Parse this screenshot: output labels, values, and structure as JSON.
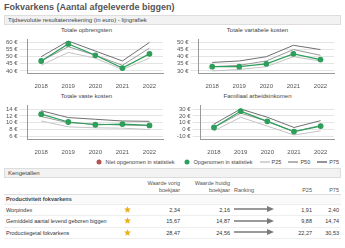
{
  "title": "Fokvarkens (Aantal afgeleverde biggen)",
  "section_title": "Tijdsevolutie resultatenrekening (in euro) - lijngrafiek",
  "chart_data": [
    {
      "type": "line",
      "title": "Totale opbrengsten",
      "categories": [
        "2018",
        "2019",
        "2020",
        "2021",
        "2022"
      ],
      "series": [
        {
          "name": "Niet opgenomen in statistiek",
          "color": "#b5524b",
          "marker": "circle",
          "line_style": "solid",
          "values": [
            null,
            null,
            null,
            null,
            null
          ]
        },
        {
          "name": "Opgenomen in statistiek",
          "color": "#2e9e5b",
          "marker": "circle",
          "line_style": "solid",
          "values": [
            47,
            59,
            51,
            42,
            52
          ]
        },
        {
          "name": "P25",
          "color": "#c4c4c4",
          "line_style": "solid",
          "values": [
            44,
            53,
            49,
            41,
            49
          ]
        },
        {
          "name": "P50",
          "color": "#9a9a9a",
          "line_style": "solid",
          "values": [
            47,
            57,
            51,
            44,
            56
          ]
        },
        {
          "name": "P75",
          "color": "#707070",
          "line_style": "solid",
          "values": [
            50,
            61,
            54,
            47,
            60
          ]
        }
      ],
      "ylim": [
        38,
        62
      ],
      "yticks": [
        {
          "value": 40,
          "label": "40 €"
        },
        {
          "value": 45,
          "label": "45 €"
        },
        {
          "value": 50,
          "label": "50 €"
        },
        {
          "value": 55,
          "label": "55 €"
        },
        {
          "value": 60,
          "label": "60 €"
        }
      ],
      "grid": true
    },
    {
      "type": "line",
      "title": "Totale variabele kosten",
      "categories": [
        "2018",
        "2019",
        "2020",
        "2021",
        "2022"
      ],
      "series": [
        {
          "name": "Niet opgenomen in statistiek",
          "color": "#b5524b",
          "marker": "circle",
          "line_style": "solid",
          "values": [
            null,
            null,
            null,
            null,
            null
          ]
        },
        {
          "name": "Opgenomen in statistiek",
          "color": "#2e9e5b",
          "marker": "circle",
          "line_style": "solid",
          "values": [
            33,
            33,
            35,
            42,
            38
          ]
        },
        {
          "name": "P25",
          "color": "#c4c4c4",
          "line_style": "solid",
          "values": [
            30,
            31,
            33,
            40,
            37
          ]
        },
        {
          "name": "P50",
          "color": "#9a9a9a",
          "line_style": "solid",
          "values": [
            33,
            34,
            37,
            45,
            41
          ]
        },
        {
          "name": "P75",
          "color": "#707070",
          "line_style": "solid",
          "values": [
            36,
            37,
            40,
            48,
            45
          ]
        }
      ],
      "ylim": [
        28,
        52
      ],
      "yticks": [
        {
          "value": 30,
          "label": "30 €"
        },
        {
          "value": 35,
          "label": "35 €"
        },
        {
          "value": 40,
          "label": "40 €"
        },
        {
          "value": 45,
          "label": "45 €"
        },
        {
          "value": 50,
          "label": "50 €"
        }
      ],
      "grid": true
    },
    {
      "type": "line",
      "title": "Totale vaste kosten",
      "categories": [
        "2018",
        "2019",
        "2020",
        "2021",
        "2022"
      ],
      "series": [
        {
          "name": "Niet opgenomen in statistiek",
          "color": "#b5524b",
          "marker": "circle",
          "line_style": "solid",
          "values": [
            null,
            null,
            null,
            null,
            null
          ]
        },
        {
          "name": "Opgenomen in statistiek",
          "color": "#2e9e5b",
          "marker": "circle",
          "line_style": "solid",
          "values": [
            12.5,
            10.2,
            9.4,
            9.6,
            9.2
          ]
        },
        {
          "name": "P25",
          "color": "#c4c4c4",
          "line_style": "solid",
          "values": [
            10.5,
            8.8,
            8.5,
            8.4,
            8.0
          ]
        },
        {
          "name": "P50",
          "color": "#9a9a9a",
          "line_style": "solid",
          "values": [
            11.8,
            10,
            9.6,
            9.3,
            9.2
          ]
        },
        {
          "name": "P75",
          "color": "#707070",
          "line_style": "solid",
          "values": [
            13.5,
            11.5,
            11,
            10.5,
            10.4
          ]
        }
      ],
      "ylim": [
        5,
        15
      ],
      "yticks": [
        {
          "value": 6,
          "label": "6 €"
        },
        {
          "value": 8,
          "label": "8 €"
        },
        {
          "value": 10,
          "label": "10 €"
        },
        {
          "value": 12,
          "label": "12 €"
        },
        {
          "value": 14,
          "label": "14 €"
        }
      ],
      "grid": true
    },
    {
      "type": "line",
      "title": "Familiaal arbeidsinkomen",
      "categories": [
        "2018",
        "2019",
        "2020",
        "2021",
        "2022"
      ],
      "series": [
        {
          "name": "Niet opgenomen in statistiek",
          "color": "#b5524b",
          "marker": "circle",
          "line_style": "solid",
          "values": [
            null,
            null,
            null,
            null,
            null
          ]
        },
        {
          "name": "Opgenomen in statistiek",
          "color": "#2e9e5b",
          "marker": "circle",
          "line_style": "solid",
          "values": [
            3,
            27,
            12,
            -3,
            5
          ]
        },
        {
          "name": "P25",
          "color": "#c4c4c4",
          "line_style": "solid",
          "values": [
            -2,
            18,
            5,
            -8,
            -2
          ]
        },
        {
          "name": "P50",
          "color": "#9a9a9a",
          "line_style": "solid",
          "values": [
            3,
            24,
            12,
            -3,
            6
          ]
        },
        {
          "name": "P75",
          "color": "#707070",
          "line_style": "solid",
          "values": [
            8,
            30,
            18,
            3,
            13
          ]
        }
      ],
      "ylim": [
        -15,
        35
      ],
      "yticks": [
        {
          "value": -10,
          "label": "-10 €"
        },
        {
          "value": 0,
          "label": "0 €"
        },
        {
          "value": 10,
          "label": "10 €"
        },
        {
          "value": 20,
          "label": "20 €"
        },
        {
          "value": 30,
          "label": "30 €"
        }
      ],
      "grid": true
    }
  ],
  "table": {
    "title": "Kengetallen",
    "columns": [
      "Waarde vorig boekjaar",
      "Waarde huidig boekjaar",
      "Ranking",
      "P25",
      "P75"
    ],
    "group": "Productiviteit fokvarkens",
    "rows": [
      {
        "label": "Worpindex",
        "cells": [
          "2,34",
          "2,16",
          "1,91",
          "2,40"
        ]
      },
      {
        "label": "Gemiddeld aantal levend geboren biggen",
        "cells": [
          "15,67",
          "14,87",
          "9,88",
          "14,74"
        ]
      },
      {
        "label": "Productiegetal fokvarkens",
        "cells": [
          "28,47",
          "24,56",
          "22,27",
          "30,53"
        ]
      }
    ]
  }
}
